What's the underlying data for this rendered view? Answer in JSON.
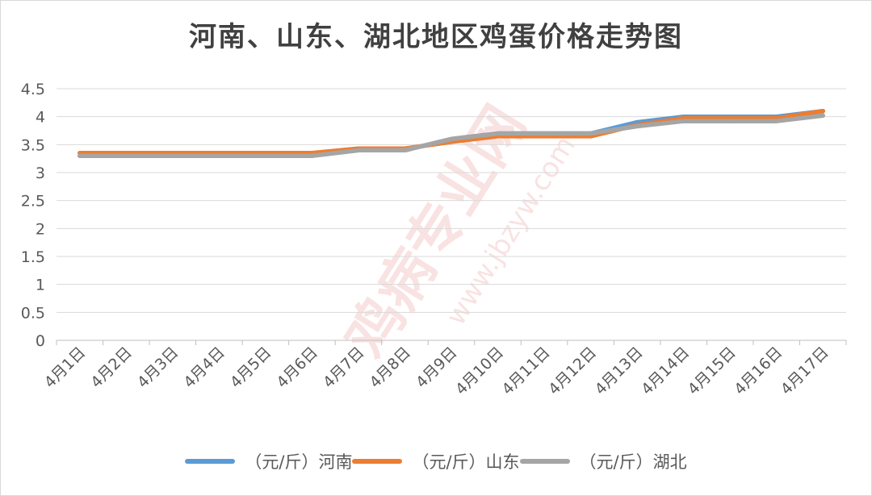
{
  "chart_data": {
    "type": "line",
    "title": "河南、山东、湖北地区鸡蛋价格走势图",
    "categories": [
      "4月1日",
      "4月2日",
      "4月3日",
      "4月4日",
      "4月5日",
      "4月6日",
      "4月7日",
      "4月8日",
      "4月9日",
      "4月10日",
      "4月11日",
      "4月12日",
      "4月13日",
      "4月14日",
      "4月15日",
      "4月16日",
      "4月17日"
    ],
    "ylim": [
      0,
      4.5
    ],
    "yticks": [
      "0",
      "0.5",
      "1",
      "1.5",
      "2",
      "2.5",
      "3",
      "3.5",
      "4",
      "4.5"
    ],
    "grid": true,
    "legend_position": "bottom",
    "series": [
      {
        "name": "（元/斤）河南",
        "color": "#5B9BD5",
        "values": [
          3.3,
          3.3,
          3.3,
          3.3,
          3.3,
          3.3,
          3.4,
          3.4,
          3.6,
          3.7,
          3.7,
          3.7,
          3.9,
          4.0,
          4.0,
          4.0,
          4.1
        ]
      },
      {
        "name": "（元/斤）山东",
        "color": "#ED7D31",
        "values": [
          3.35,
          3.35,
          3.35,
          3.35,
          3.35,
          3.35,
          3.43,
          3.43,
          3.55,
          3.65,
          3.65,
          3.65,
          3.85,
          3.97,
          3.97,
          3.97,
          4.1
        ]
      },
      {
        "name": "（元/斤）湖北",
        "color": "#A5A5A5",
        "values": [
          3.3,
          3.3,
          3.3,
          3.3,
          3.3,
          3.3,
          3.4,
          3.4,
          3.6,
          3.7,
          3.7,
          3.7,
          3.83,
          3.92,
          3.92,
          3.92,
          4.02
        ]
      }
    ]
  },
  "watermark": {
    "text": "鸡病专业网",
    "url": "www.jbzyw.com"
  }
}
